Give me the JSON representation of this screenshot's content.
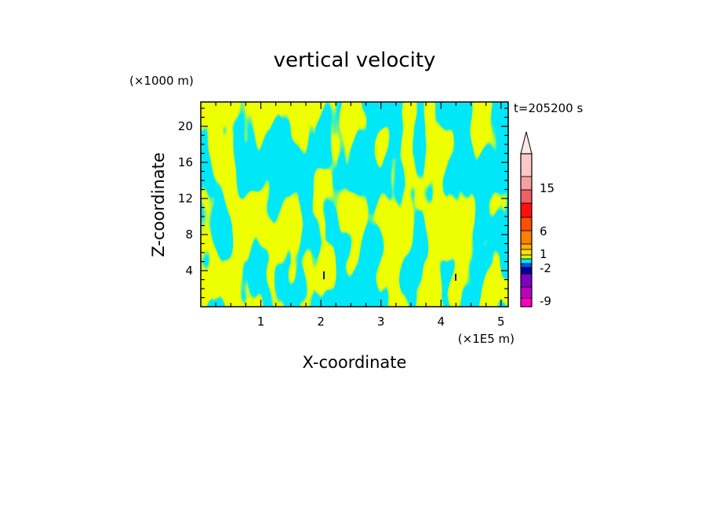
{
  "chart_data": {
    "type": "heatmap",
    "title": "vertical velocity",
    "xlabel": "X-coordinate",
    "ylabel": "Z-coordinate",
    "x_unit": "(×1E5 m)",
    "y_unit": "(×1000 m)",
    "time_label": "t=205200 s",
    "xlim": [
      0,
      5.12
    ],
    "ylim": [
      0,
      22.7
    ],
    "x_ticks": [
      1,
      2,
      3,
      4,
      5
    ],
    "y_ticks": [
      4,
      8,
      12,
      16,
      20
    ],
    "grid": false,
    "field_colors": {
      "positive": "#d8ff00",
      "negative": "#00e8f8",
      "strong_negative": "#1010b0"
    },
    "colorbar": {
      "label_values": [
        "15",
        "6",
        "1",
        "-2",
        "-9"
      ],
      "levels": [
        {
          "color": "#ff00c0"
        },
        {
          "color": "#c000c0"
        },
        {
          "color": "#8000c0"
        },
        {
          "color": "#0000a0"
        },
        {
          "color": "#0050ff"
        },
        {
          "color": "#00e8f8"
        },
        {
          "color": "#d8ff00"
        },
        {
          "color": "#ffe000"
        },
        {
          "color": "#ffb000"
        },
        {
          "color": "#ff8000"
        },
        {
          "color": "#ff5000"
        },
        {
          "color": "#ff1010"
        },
        {
          "color": "#f06060"
        },
        {
          "color": "#f8a0a0"
        },
        {
          "color": "#ffc8c8"
        },
        {
          "color": "#ffe0e0"
        }
      ]
    }
  }
}
